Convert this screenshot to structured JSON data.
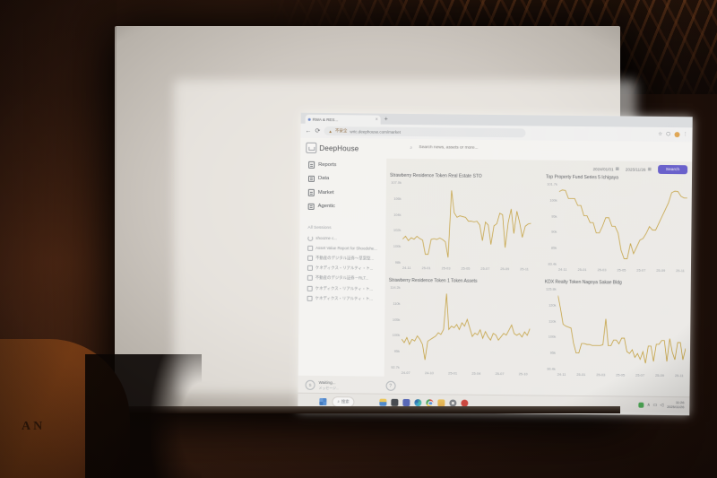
{
  "photo": {
    "podium_text": "AN"
  },
  "browser": {
    "tab_title": "RWA & RES...",
    "new_tab": "+",
    "back": "←",
    "refresh": "⟳",
    "warn_icon": "▲",
    "security_label": "不安全",
    "url": "wrtc.deephouse.com/market",
    "star": "☆",
    "extensions": "⬡",
    "menu": "⋮"
  },
  "app": {
    "brand": "DeepHouse",
    "nav": [
      "Reports",
      "Data",
      "Market",
      "Agentic"
    ],
    "sessions_header": "All Sessions",
    "sessions": [
      {
        "icon": "spinner",
        "label": "shoozne c..."
      },
      {
        "icon": "chat",
        "label": "Asset Value Report for Shoodohe..."
      },
      {
        "icon": "chat",
        "label": "不動産のデジタル証券～草案型..."
      },
      {
        "icon": "chat",
        "label": "ケネディクス・リアルティ・ト..."
      },
      {
        "icon": "chat",
        "label": "不動産のデジタル証券－RLT..."
      },
      {
        "icon": "chat",
        "label": "ケネディクス・リアルティ・ト..."
      },
      {
        "icon": "chat",
        "label": "ケネディクス・リアルティ・ト..."
      }
    ],
    "topbar": {
      "search_placeholder": "Search news, assets or more...",
      "search_icon": "⌕",
      "date_from": "2024/01/01",
      "date_to": "2025/11/26",
      "calendar_icon": "▦",
      "search_button": "Search",
      "accent_color": "#5b51d8"
    },
    "chat": {
      "avatar": "S",
      "status": "Waiting...",
      "subtext": "メッセージ...",
      "help": "?"
    }
  },
  "taskbar": {
    "search_label": "搜索",
    "search_icon": "⌕",
    "apps": [
      "dark-app",
      "teams",
      "edge",
      "chrome",
      "folder",
      "settings",
      "netease"
    ],
    "tray_glyphs": [
      "∧",
      "▭",
      "◁"
    ],
    "time": "11:26",
    "date": "2025/11/26"
  },
  "chart_data": [
    {
      "type": "line",
      "title": "Strawberry Residence Token Real Estate STO",
      "line_color": "#c9a02e",
      "y_ticks": [
        "107.0k",
        "106k",
        "104k",
        "102k",
        "100k",
        "98k"
      ],
      "x_ticks": [
        "24-11",
        "25-01",
        "25-03",
        "25-05",
        "25-07",
        "25-09",
        "25-11"
      ],
      "ylim": [
        97,
        107.5
      ],
      "values": [
        100,
        100.4,
        99.8,
        100.2,
        100,
        100.4,
        100.1,
        99.9,
        98,
        98,
        100,
        100.1,
        100,
        100.2,
        100,
        99.7,
        97.6,
        106.6,
        103.6,
        103,
        103.2,
        103.1,
        103,
        102.5,
        102.5,
        102.4,
        102.5,
        102,
        99.9,
        102.4,
        102,
        99.4,
        101.9,
        102.2,
        103.6,
        103.4,
        99,
        102.4,
        104.2,
        100.9,
        103.9,
        102.4,
        100.4,
        101.9,
        102.2,
        102.3
      ]
    },
    {
      "type": "line",
      "title": "Top Property Fund Series 5 Ichigaya",
      "line_color": "#c9a02e",
      "y_ticks": [
        "101.7k",
        "100k",
        "95k",
        "90k",
        "85k",
        "83.4k"
      ],
      "x_ticks": [
        "24-11",
        "25-01",
        "25-03",
        "25-05",
        "25-07",
        "25-09",
        "25-11"
      ],
      "ylim": [
        79,
        102
      ],
      "values": [
        100,
        100.5,
        100.4,
        98,
        98,
        98,
        96,
        96,
        93,
        93,
        91,
        91,
        88,
        88,
        90,
        92.5,
        92.5,
        90,
        90,
        88,
        83,
        80.5,
        80.5,
        85,
        82,
        84,
        86,
        86.5,
        88,
        90,
        89,
        89,
        91,
        93,
        95,
        97,
        100,
        100.5,
        100.4,
        99,
        98.5,
        98.5
      ]
    },
    {
      "type": "line",
      "title": "Strawberry Residence Token 1 Token Assets",
      "line_color": "#c9a02e",
      "y_ticks": [
        "114.2k",
        "110k",
        "105k",
        "100k",
        "95k",
        "92.7k"
      ],
      "x_ticks": [
        "24-07",
        "24-10",
        "25-01",
        "25-04",
        "25-07",
        "25-10"
      ],
      "ylim": [
        92,
        115
      ],
      "values": [
        100,
        99,
        100.5,
        98.5,
        100,
        99.5,
        101,
        100,
        98.5,
        94,
        99.5,
        100,
        100.5,
        101,
        102,
        101.5,
        103,
        113.5,
        103,
        104,
        103.5,
        104.5,
        103,
        105,
        104,
        106,
        103.5,
        101,
        102,
        101.5,
        103,
        100.5,
        102.5,
        101,
        100,
        102,
        101.5,
        100,
        101,
        102,
        101.5,
        103,
        104.5,
        102,
        101.5,
        102,
        101,
        102.5,
        101.5,
        103.5
      ]
    },
    {
      "type": "line",
      "title": "KDX Realty Token Nagoya Sakae Bldg",
      "line_color": "#c9a02e",
      "y_ticks": [
        "125.8k",
        "120k",
        "110k",
        "100k",
        "95k",
        "90.4k"
      ],
      "x_ticks": [
        "24-11",
        "25-01",
        "25-03",
        "25-05",
        "25-07",
        "25-09",
        "25-11"
      ],
      "ylim": [
        87,
        128
      ],
      "values": [
        125,
        118,
        110,
        109,
        108.5,
        108,
        100,
        95,
        95,
        100,
        100,
        99.5,
        99.5,
        99,
        99,
        99,
        99,
        99.5,
        113,
        99,
        99,
        102,
        102,
        100,
        103,
        103,
        96,
        95,
        97,
        93,
        95,
        92,
        96,
        90,
        99,
        99,
        91,
        100,
        100,
        102,
        102,
        91,
        103,
        96,
        92,
        101,
        101,
        92,
        98
      ]
    }
  ]
}
